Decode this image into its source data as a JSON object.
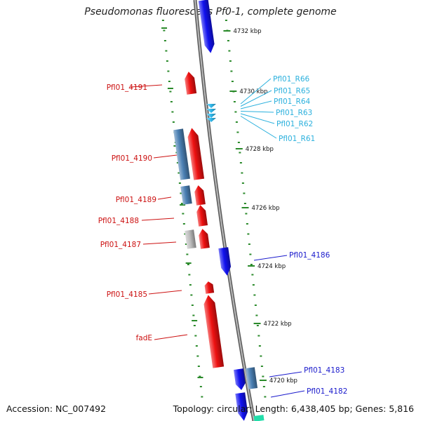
{
  "title": "Pseudomonas fluorescens Pf0-1, complete genome",
  "footer": {
    "accession": "Accession: NC_007492",
    "stats": "Topology: circular; Length: 6,438,405 bp; Genes: 5,816"
  },
  "colors": {
    "forward_cds": "#ee1111",
    "reverse_cds": "#1111ee",
    "rna": "#33bbee",
    "steel_cds": "#4a7fb3",
    "pseudo_cds": "#bdbdbd",
    "ticks": "#2a8a2a",
    "backbone": "#8f8f8f"
  },
  "scale_labels": [
    "4732 kbp",
    "4730 kbp",
    "4728 kbp",
    "4726 kbp",
    "4724 kbp",
    "4722 kbp",
    "4720 kbp"
  ],
  "gene_labels_left": [
    "Pfl01_4191",
    "Pfl01_4190",
    "Pfl01_4189",
    "Pfl01_4188",
    "Pfl01_4187",
    "Pfl01_4185",
    "fadE"
  ],
  "gene_labels_right": [
    "Pfl01_4186",
    "Pfl01_4183",
    "Pfl01_4182"
  ],
  "rna_labels": [
    "Pfl01_R66",
    "Pfl01_R65",
    "Pfl01_R64",
    "Pfl01_R63",
    "Pfl01_R62",
    "Pfl01_R61"
  ]
}
